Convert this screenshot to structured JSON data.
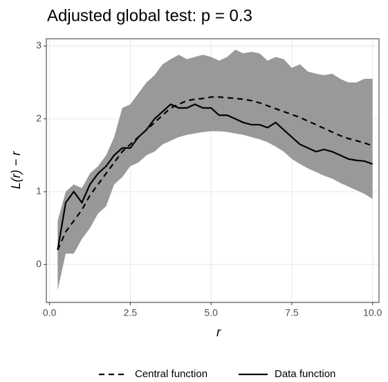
{
  "chart_data": {
    "type": "envelope",
    "title": "Adjusted global test: p = 0.3",
    "x_label": "r",
    "y_label": "L(r) − r",
    "x": [
      0.25,
      0.5,
      0.75,
      1.0,
      1.25,
      1.5,
      1.75,
      2.0,
      2.25,
      2.5,
      2.75,
      3.0,
      3.25,
      3.5,
      3.75,
      4.0,
      4.25,
      4.5,
      4.75,
      5.0,
      5.25,
      5.5,
      5.75,
      6.0,
      6.25,
      6.5,
      6.75,
      7.0,
      7.25,
      7.5,
      7.75,
      8.0,
      8.25,
      8.5,
      8.75,
      9.0,
      9.25,
      9.5,
      9.75,
      10.0
    ],
    "envelope": {
      "color": "#999999",
      "lower": [
        -0.35,
        0.15,
        0.15,
        0.35,
        0.5,
        0.7,
        0.8,
        1.1,
        1.2,
        1.35,
        1.4,
        1.5,
        1.55,
        1.65,
        1.7,
        1.75,
        1.78,
        1.8,
        1.82,
        1.83,
        1.83,
        1.82,
        1.8,
        1.78,
        1.75,
        1.72,
        1.68,
        1.62,
        1.55,
        1.45,
        1.38,
        1.32,
        1.27,
        1.22,
        1.18,
        1.12,
        1.07,
        1.02,
        0.97,
        0.9
      ],
      "upper": [
        0.6,
        1.0,
        1.1,
        1.05,
        1.25,
        1.35,
        1.5,
        1.75,
        2.15,
        2.2,
        2.35,
        2.5,
        2.6,
        2.75,
        2.82,
        2.88,
        2.82,
        2.85,
        2.88,
        2.85,
        2.8,
        2.85,
        2.95,
        2.9,
        2.92,
        2.9,
        2.8,
        2.85,
        2.82,
        2.7,
        2.75,
        2.65,
        2.62,
        2.6,
        2.62,
        2.55,
        2.5,
        2.5,
        2.55,
        2.55
      ]
    },
    "series": [
      {
        "name": "Central function",
        "color": "#000000",
        "dashed": true,
        "values": [
          0.2,
          0.45,
          0.6,
          0.75,
          0.95,
          1.1,
          1.25,
          1.4,
          1.55,
          1.65,
          1.75,
          1.85,
          1.95,
          2.05,
          2.15,
          2.2,
          2.25,
          2.27,
          2.28,
          2.3,
          2.3,
          2.29,
          2.28,
          2.27,
          2.25,
          2.22,
          2.18,
          2.14,
          2.1,
          2.06,
          2.02,
          1.97,
          1.92,
          1.87,
          1.82,
          1.77,
          1.73,
          1.7,
          1.67,
          1.63
        ]
      },
      {
        "name": "Data function",
        "color": "#000000",
        "dashed": false,
        "values": [
          0.2,
          0.85,
          1.0,
          0.85,
          1.1,
          1.25,
          1.35,
          1.5,
          1.6,
          1.6,
          1.75,
          1.85,
          2.0,
          2.1,
          2.2,
          2.15,
          2.15,
          2.2,
          2.15,
          2.15,
          2.05,
          2.05,
          2.0,
          1.95,
          1.92,
          1.92,
          1.88,
          1.95,
          1.85,
          1.75,
          1.65,
          1.6,
          1.55,
          1.58,
          1.55,
          1.5,
          1.45,
          1.43,
          1.42,
          1.38
        ]
      }
    ],
    "xlim": [
      -0.1,
      10.2
    ],
    "ylim": [
      -0.52,
      3.1
    ],
    "xticks": [
      {
        "value": 0,
        "label": "0.0"
      },
      2.5,
      {
        "value": 5,
        "label": "5.0"
      },
      7.5,
      {
        "value": 10,
        "label": "10.0"
      }
    ],
    "yticks": [
      0,
      1,
      2,
      3
    ],
    "grid": true,
    "legend": "bottom"
  }
}
